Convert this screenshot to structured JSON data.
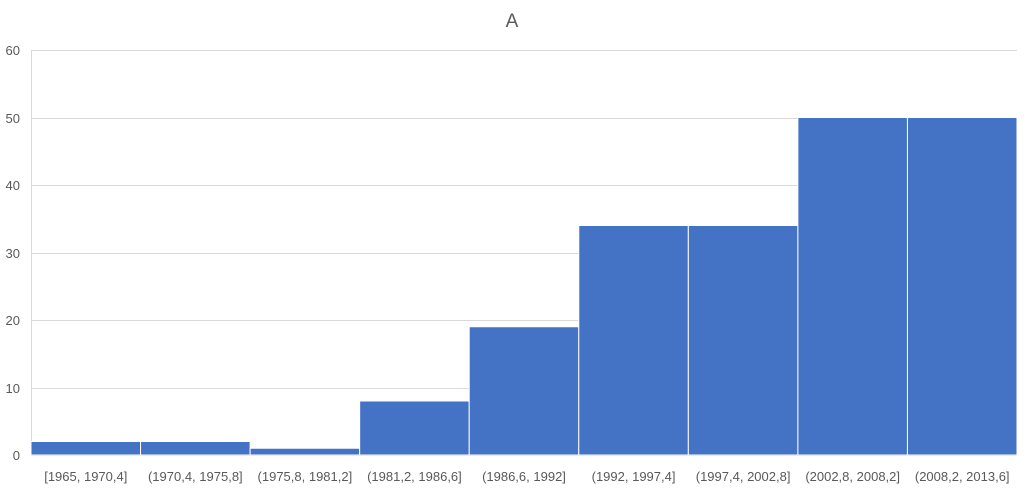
{
  "colors": {
    "bar": "#4472c4",
    "grid": "#d9d9d9",
    "text": "#595959"
  },
  "chart_data": {
    "type": "bar",
    "title": "A",
    "xlabel": "",
    "ylabel": "",
    "categories": [
      "[1965, 1970,4]",
      "(1970,4, 1975,8]",
      "(1975,8, 1981,2]",
      "(1981,2, 1986,6]",
      "(1986,6, 1992]",
      "(1992, 1997,4]",
      "(1997,4, 2002,8]",
      "(2002,8, 2008,2]",
      "(2008,2, 2013,6]"
    ],
    "values": [
      2,
      2,
      1,
      8,
      19,
      34,
      34,
      50,
      50
    ],
    "ylim": [
      0,
      60
    ],
    "yticks": [
      0,
      10,
      20,
      30,
      40,
      50,
      60
    ],
    "grid": true,
    "legend": "none"
  }
}
